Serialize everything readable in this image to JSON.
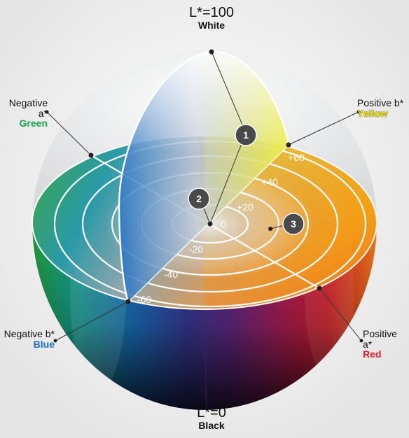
{
  "labels": {
    "top_main": "L*=100",
    "top_sub": "White",
    "bottom_main": "L*=0",
    "bottom_sub": "Black",
    "neg_a_main": "Negative a*",
    "neg_a_sub": "Green",
    "pos_b_main": "Positive b*",
    "pos_b_sub": "Yellow",
    "neg_b_main": "Negative b*",
    "neg_b_sub": "Blue",
    "pos_a_main": "Positive a*",
    "pos_a_sub": "Red"
  },
  "scale": {
    "zero": "0",
    "p20": "+20",
    "p40": "+40",
    "p60": "+60",
    "m20": "-20",
    "m40": "-40",
    "m60": "-60"
  },
  "badges": {
    "one": "1",
    "two": "2",
    "three": "3"
  },
  "colors": {
    "green": "#1aa34a",
    "yellow": "#f2e600",
    "blue": "#1a6fc4",
    "red": "#e3202b",
    "badge": "#4a4a4a"
  }
}
